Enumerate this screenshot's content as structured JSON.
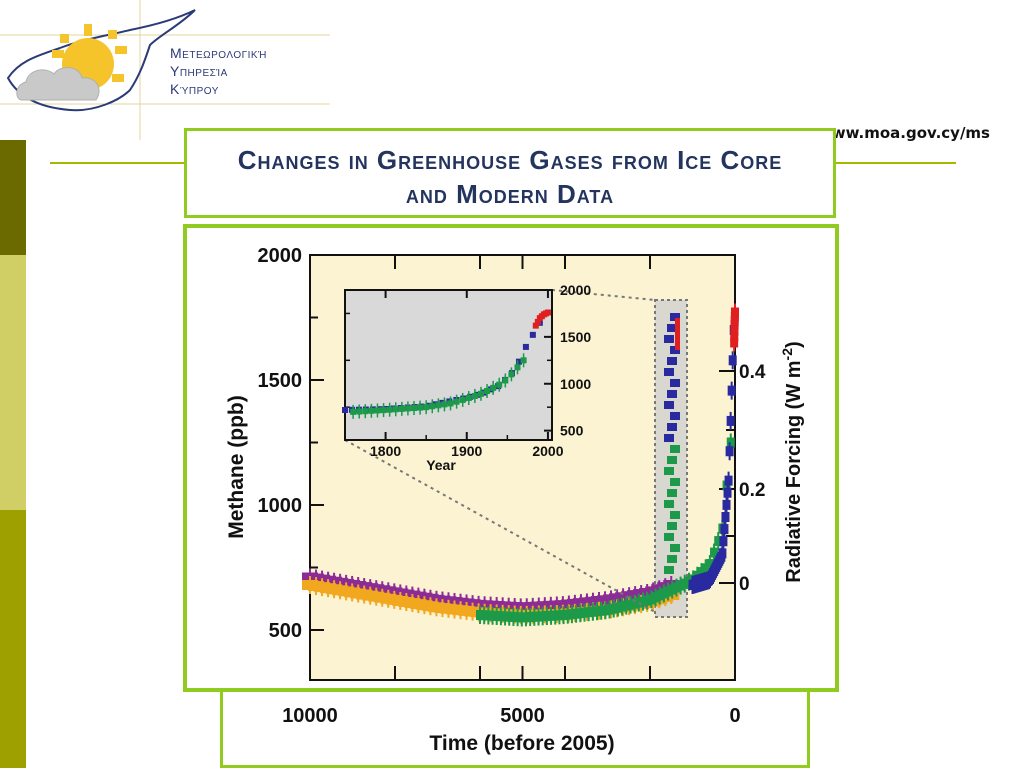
{
  "header": {
    "logo": {
      "line1": "Μετεωρολογική",
      "line2": "Υπηρεσία",
      "line3": "Κύπρου"
    },
    "url": "www.moa.gov.cy/ms"
  },
  "slide": {
    "title_line1": "Changes in Greenhouse Gases from Ice Core",
    "title_line2": "and Modern Data"
  },
  "colors": {
    "accent_green": "#8fcc1f",
    "plot_bg": "#fbf3d2",
    "inset_bg": "#d9d9d9",
    "purple": "#8c2a96",
    "orange": "#f2a81e",
    "green": "#1c9a4a",
    "blue": "#2a2aa0",
    "red": "#e02020"
  },
  "chart_data": [
    {
      "type": "scatter",
      "title": "",
      "xlabel": "Time (before 2005)",
      "ylabel": "Methane (ppb)",
      "y2label": "Radiative Forcing (W m-2)",
      "xlim": [
        10000,
        0
      ],
      "ylim": [
        300,
        2000
      ],
      "x_ticks": [
        "10000",
        "5000",
        "0"
      ],
      "y_ticks": [
        "500",
        "1000",
        "1500",
        "2000"
      ],
      "y2_ticks": [
        "0",
        "0.2",
        "0.4"
      ],
      "series": [
        {
          "color": "purple",
          "x": [
            10000,
            9000,
            8000,
            7000,
            6000,
            5000,
            4000,
            3000,
            2000,
            1500
          ],
          "values": [
            710,
            680,
            650,
            620,
            600,
            590,
            600,
            620,
            650,
            680
          ]
        },
        {
          "color": "orange",
          "x": [
            10000,
            9000,
            8000,
            7000,
            6000,
            5000,
            4000,
            3000,
            2000,
            1500
          ],
          "values": [
            680,
            650,
            620,
            590,
            570,
            560,
            565,
            580,
            610,
            640
          ]
        },
        {
          "color": "green",
          "x": [
            6000,
            5000,
            4000,
            3000,
            2000,
            1500,
            1000,
            600,
            300,
            100
          ],
          "values": [
            560,
            550,
            560,
            580,
            620,
            660,
            700,
            760,
            900,
            1250
          ]
        },
        {
          "color": "blue",
          "x": [
            1000,
            600,
            300,
            150,
            80,
            30
          ],
          "values": [
            680,
            700,
            800,
            1100,
            1450,
            1700
          ]
        },
        {
          "color": "red",
          "x": [
            20,
            10,
            0
          ],
          "values": [
            1650,
            1720,
            1770
          ]
        }
      ]
    },
    {
      "type": "scatter",
      "title": "",
      "xlabel": "Year",
      "ylabel": "",
      "xlim": [
        1750,
        2005
      ],
      "ylim": [
        400,
        2000
      ],
      "x_ticks": [
        "1800",
        "1900",
        "2000"
      ],
      "y_ticks": [
        "500",
        "1000",
        "1500",
        "2000"
      ],
      "series": [
        {
          "color": "blue",
          "x": [
            1750,
            1800,
            1850,
            1900,
            1920,
            1940,
            1960,
            1970,
            1980,
            1990
          ],
          "values": [
            720,
            730,
            760,
            850,
            900,
            980,
            1150,
            1350,
            1500,
            1650
          ]
        },
        {
          "color": "green",
          "x": [
            1760,
            1800,
            1850,
            1880,
            1900,
            1920,
            1940,
            1950,
            1960,
            1970
          ],
          "values": [
            700,
            720,
            750,
            790,
            840,
            900,
            990,
            1050,
            1150,
            1250
          ]
        },
        {
          "color": "red",
          "x": [
            1985,
            1990,
            1995,
            2000
          ],
          "values": [
            1620,
            1700,
            1740,
            1760
          ]
        }
      ]
    }
  ]
}
